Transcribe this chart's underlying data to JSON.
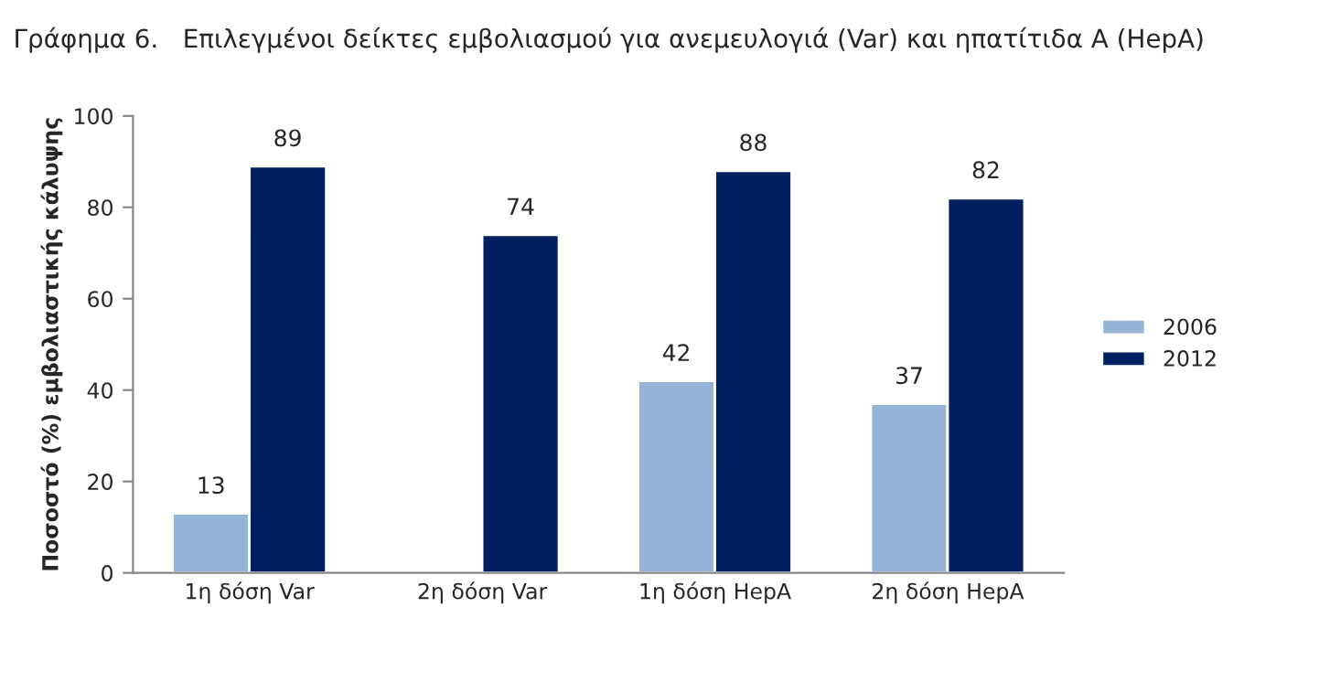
{
  "chart_data": {
    "type": "bar",
    "title": "Γράφημα 6.   Επιλεγμένοι δείκτες εμβολιασμού για ανεμευλογιά (Var) και ηπατίτιδα A (HepA)",
    "ylabel": "Ποσοστό (%) εμβολιαστικής κάλυψης",
    "categories": [
      "1η δόση Var",
      "2η δόση Var",
      "1η δόση HepA",
      "2η δόση HepA"
    ],
    "series": [
      {
        "name": "2006",
        "color": "#95b3d7",
        "values": [
          13,
          null,
          42,
          37
        ]
      },
      {
        "name": "2012",
        "color": "#002060",
        "values": [
          89,
          74,
          88,
          82
        ]
      }
    ],
    "ylim": [
      0,
      100
    ],
    "yticks": [
      0,
      20,
      40,
      60,
      80,
      100
    ],
    "data_labels": true,
    "grid": false,
    "legend": "right"
  }
}
